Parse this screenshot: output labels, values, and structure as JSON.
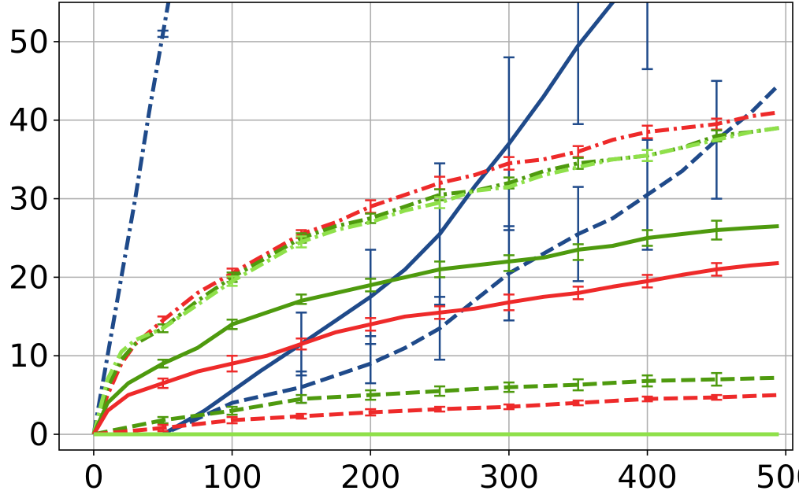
{
  "chart_data": {
    "type": "line",
    "title": "",
    "xlabel": "",
    "ylabel": "",
    "xlim": [
      -25,
      505
    ],
    "ylim": [
      -2,
      55
    ],
    "grid": true,
    "legend": "none",
    "x_ticks": [
      "0",
      "100",
      "200",
      "300",
      "400",
      "500"
    ],
    "y_ticks": [
      "0",
      "10",
      "20",
      "30",
      "40",
      "50"
    ],
    "series": [
      {
        "color": "#1f4a8a",
        "style": "dashdot",
        "x": [
          0,
          10,
          20,
          30,
          40,
          50,
          55
        ],
        "y": [
          0,
          10,
          20,
          30,
          41,
          51,
          56
        ],
        "errorbars": [
          {
            "x": 50,
            "y": 51,
            "err": 0.4
          }
        ]
      },
      {
        "color": "#1f4a8a",
        "style": "solid",
        "x": [
          0,
          30,
          50,
          60,
          80,
          100,
          120,
          150,
          175,
          200,
          225,
          250,
          275,
          300,
          325,
          350,
          375,
          380
        ],
        "y": [
          0,
          0,
          0,
          1,
          3,
          5.5,
          8,
          11.5,
          14.5,
          17.5,
          21,
          25.5,
          31.5,
          37,
          43,
          49.5,
          55,
          56
        ],
        "errorbars": [
          {
            "x": 150,
            "y": 11.5,
            "err": 4
          },
          {
            "x": 200,
            "y": 17.5,
            "err": 6
          },
          {
            "x": 250,
            "y": 25.5,
            "err": 9
          },
          {
            "x": 300,
            "y": 37,
            "err": 11
          },
          {
            "x": 350,
            "y": 49.5,
            "err": 10
          },
          {
            "x": 400,
            "y": 59,
            "err": 12.5
          }
        ]
      },
      {
        "color": "#1f4a8a",
        "style": "dashed",
        "x": [
          0,
          50,
          75,
          100,
          125,
          150,
          175,
          200,
          225,
          250,
          275,
          300,
          325,
          350,
          375,
          400,
          425,
          450,
          475,
          495
        ],
        "y": [
          0,
          0,
          2,
          4,
          5,
          6,
          7.5,
          9,
          11,
          13.5,
          17,
          20.5,
          23,
          25.5,
          27.5,
          30.5,
          33.5,
          37.5,
          41,
          44.5
        ],
        "errorbars": [
          {
            "x": 150,
            "y": 6,
            "err": 2
          },
          {
            "x": 200,
            "y": 9.5,
            "err": 3
          },
          {
            "x": 250,
            "y": 13.5,
            "err": 4
          },
          {
            "x": 300,
            "y": 20.5,
            "err": 6
          },
          {
            "x": 350,
            "y": 25.5,
            "err": 6
          },
          {
            "x": 400,
            "y": 30.5,
            "err": 7
          },
          {
            "x": 450,
            "y": 37.5,
            "err": 7.5
          }
        ]
      },
      {
        "color": "#ee2a2a",
        "style": "dashdot",
        "x": [
          0,
          10,
          20,
          30,
          50,
          75,
          100,
          125,
          150,
          175,
          200,
          225,
          250,
          275,
          300,
          325,
          350,
          375,
          400,
          425,
          450,
          475,
          495
        ],
        "y": [
          0,
          5,
          9,
          11.5,
          14.5,
          18,
          20.5,
          23,
          25.5,
          27,
          29,
          30.5,
          32,
          33,
          34.5,
          35,
          36,
          37.5,
          38.5,
          39,
          39.5,
          40.5,
          41
        ],
        "errorbars": [
          {
            "x": 50,
            "y": 14.5,
            "err": 0.5
          },
          {
            "x": 100,
            "y": 20.5,
            "err": 0.6
          },
          {
            "x": 150,
            "y": 25.5,
            "err": 0.5
          },
          {
            "x": 200,
            "y": 29,
            "err": 0.8
          },
          {
            "x": 250,
            "y": 32,
            "err": 0.8
          },
          {
            "x": 300,
            "y": 34.5,
            "err": 0.8
          },
          {
            "x": 350,
            "y": 36,
            "err": 0.7
          },
          {
            "x": 400,
            "y": 38.5,
            "err": 0.8
          },
          {
            "x": 450,
            "y": 39.5,
            "err": 0.7
          }
        ]
      },
      {
        "color": "#4e9a0e",
        "style": "dashdot",
        "x": [
          0,
          10,
          20,
          30,
          50,
          75,
          100,
          125,
          150,
          175,
          200,
          225,
          250,
          275,
          300,
          325,
          350,
          375,
          400,
          425,
          450,
          475,
          495
        ],
        "y": [
          0,
          6,
          9.5,
          11.5,
          13.5,
          17,
          20,
          22.5,
          25,
          26.5,
          27.5,
          29,
          30.5,
          31,
          32,
          33.5,
          34.5,
          35,
          35.5,
          36.5,
          38,
          38.5,
          39
        ],
        "errorbars": [
          {
            "x": 50,
            "y": 13.5,
            "err": 0.5
          },
          {
            "x": 100,
            "y": 20,
            "err": 0.6
          },
          {
            "x": 150,
            "y": 25,
            "err": 0.6
          },
          {
            "x": 200,
            "y": 27.5,
            "err": 0.6
          },
          {
            "x": 250,
            "y": 30.5,
            "err": 0.7
          },
          {
            "x": 300,
            "y": 32,
            "err": 0.7
          },
          {
            "x": 350,
            "y": 34.5,
            "err": 0.7
          },
          {
            "x": 400,
            "y": 35.5,
            "err": 0.7
          },
          {
            "x": 450,
            "y": 38,
            "err": 0.7
          }
        ]
      },
      {
        "color": "#8fe04a",
        "style": "dashdot",
        "x": [
          0,
          10,
          20,
          30,
          50,
          75,
          100,
          125,
          150,
          175,
          200,
          225,
          250,
          275,
          300,
          325,
          350,
          375,
          400,
          425,
          450,
          475,
          495
        ],
        "y": [
          0,
          7,
          10.5,
          12,
          13.5,
          16.5,
          19.5,
          22,
          24.5,
          26,
          27,
          28.5,
          29.5,
          31,
          31.5,
          33,
          34,
          35,
          35.5,
          36.5,
          37.5,
          38.5,
          39
        ],
        "errorbars": [
          {
            "x": 100,
            "y": 19.5,
            "err": 0.6
          },
          {
            "x": 150,
            "y": 24.5,
            "err": 0.7
          },
          {
            "x": 250,
            "y": 29.5,
            "err": 0.7
          },
          {
            "x": 400,
            "y": 35.5,
            "err": 0.7
          }
        ]
      },
      {
        "color": "#4e9a0e",
        "style": "solid",
        "x": [
          0,
          10,
          25,
          50,
          75,
          100,
          125,
          150,
          175,
          200,
          225,
          250,
          275,
          300,
          325,
          350,
          375,
          400,
          425,
          450,
          475,
          495
        ],
        "y": [
          0,
          4,
          6.5,
          9,
          11,
          14,
          15.5,
          17,
          18,
          19,
          20,
          21,
          21.5,
          22,
          22.5,
          23.5,
          24,
          25,
          25.5,
          26,
          26.3,
          26.5
        ],
        "errorbars": [
          {
            "x": 50,
            "y": 9,
            "err": 0.5
          },
          {
            "x": 100,
            "y": 14,
            "err": 0.6
          },
          {
            "x": 150,
            "y": 17.2,
            "err": 0.6
          },
          {
            "x": 200,
            "y": 19,
            "err": 0.8
          },
          {
            "x": 250,
            "y": 21,
            "err": 1
          },
          {
            "x": 300,
            "y": 21.8,
            "err": 1
          },
          {
            "x": 350,
            "y": 23.2,
            "err": 1
          },
          {
            "x": 400,
            "y": 25,
            "err": 1
          },
          {
            "x": 450,
            "y": 26,
            "err": 1.2
          }
        ]
      },
      {
        "color": "#ee2a2a",
        "style": "solid",
        "x": [
          0,
          10,
          25,
          50,
          75,
          100,
          125,
          150,
          175,
          200,
          225,
          250,
          275,
          300,
          325,
          350,
          375,
          400,
          425,
          450,
          475,
          495
        ],
        "y": [
          0,
          3,
          5,
          6.5,
          8,
          9,
          10,
          11.5,
          13,
          14,
          15,
          15.5,
          16,
          16.8,
          17.5,
          18,
          18.8,
          19.5,
          20.3,
          21,
          21.5,
          21.8
        ],
        "errorbars": [
          {
            "x": 50,
            "y": 6.5,
            "err": 0.6
          },
          {
            "x": 100,
            "y": 9,
            "err": 1
          },
          {
            "x": 150,
            "y": 11.5,
            "err": 0.7
          },
          {
            "x": 200,
            "y": 14,
            "err": 0.8
          },
          {
            "x": 250,
            "y": 15.5,
            "err": 0.8
          },
          {
            "x": 300,
            "y": 16.8,
            "err": 1
          },
          {
            "x": 350,
            "y": 18,
            "err": 0.8
          },
          {
            "x": 400,
            "y": 19.5,
            "err": 0.8
          },
          {
            "x": 450,
            "y": 21,
            "err": 0.8
          }
        ]
      },
      {
        "color": "#4e9a0e",
        "style": "dashed",
        "x": [
          0,
          50,
          100,
          150,
          200,
          250,
          300,
          350,
          400,
          450,
          495
        ],
        "y": [
          0,
          1.8,
          3,
          4.5,
          5,
          5.5,
          6,
          6.3,
          6.8,
          7,
          7.2
        ],
        "errorbars": [
          {
            "x": 50,
            "y": 1.8,
            "err": 0.4
          },
          {
            "x": 100,
            "y": 3,
            "err": 0.5
          },
          {
            "x": 150,
            "y": 4.5,
            "err": 0.5
          },
          {
            "x": 200,
            "y": 5,
            "err": 0.6
          },
          {
            "x": 250,
            "y": 5.5,
            "err": 0.6
          },
          {
            "x": 300,
            "y": 6,
            "err": 0.6
          },
          {
            "x": 350,
            "y": 6.3,
            "err": 0.7
          },
          {
            "x": 400,
            "y": 6.8,
            "err": 0.7
          },
          {
            "x": 450,
            "y": 7,
            "err": 0.8
          }
        ]
      },
      {
        "color": "#ee2a2a",
        "style": "dashed",
        "x": [
          0,
          50,
          100,
          150,
          200,
          250,
          300,
          350,
          400,
          450,
          495
        ],
        "y": [
          0,
          0.8,
          1.8,
          2.3,
          2.8,
          3.2,
          3.5,
          4,
          4.5,
          4.7,
          5
        ],
        "errorbars": [
          {
            "x": 50,
            "y": 0.8,
            "err": 0.4
          },
          {
            "x": 100,
            "y": 1.8,
            "err": 0.4
          },
          {
            "x": 150,
            "y": 2.3,
            "err": 0.3
          },
          {
            "x": 200,
            "y": 2.8,
            "err": 0.4
          },
          {
            "x": 250,
            "y": 3.2,
            "err": 0.3
          },
          {
            "x": 300,
            "y": 3.5,
            "err": 0.3
          },
          {
            "x": 350,
            "y": 4,
            "err": 0.3
          },
          {
            "x": 400,
            "y": 4.5,
            "err": 0.3
          },
          {
            "x": 450,
            "y": 4.7,
            "err": 0.3
          }
        ]
      },
      {
        "color": "#8fe04a",
        "style": "solid",
        "x": [
          0,
          495
        ],
        "y": [
          0,
          0
        ],
        "errorbars": []
      }
    ]
  }
}
